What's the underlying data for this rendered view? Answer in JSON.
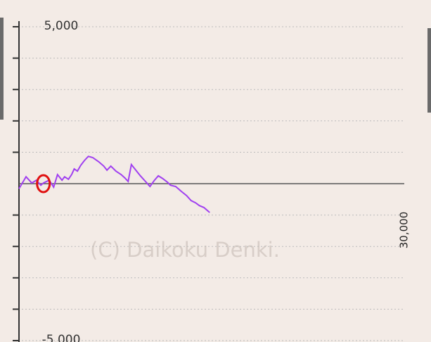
{
  "chart_data": {
    "type": "line",
    "watermark": "(C) Daikoku Denki.",
    "xlim": [
      0,
      30000
    ],
    "xticks": [
      {
        "value": 30000,
        "label": "30,000"
      }
    ],
    "ylim": [
      -5000,
      5000
    ],
    "yticks": [
      {
        "value": 5000,
        "label": "5,000"
      },
      {
        "value": -5000,
        "label": "-5,000"
      }
    ],
    "y_gridlines": [
      4000,
      3000,
      2000,
      1000,
      -1000,
      -2000,
      -3000,
      -4000
    ],
    "zero_line": 0,
    "marker": {
      "x": 1900,
      "y": 0,
      "color": "#e01010"
    },
    "series": [
      {
        "color": "#a040f0",
        "x": [
          0,
          550,
          1000,
          1350,
          1700,
          1900,
          2350,
          2700,
          3000,
          3350,
          3550,
          3850,
          4100,
          4300,
          4550,
          4800,
          5100,
          5400,
          5750,
          6200,
          6600,
          6850,
          7150,
          7550,
          7950,
          8250,
          8500,
          8750,
          9100,
          9450,
          9850,
          10200,
          10550,
          10850,
          11200,
          11550,
          11800,
          12200,
          12650,
          13050,
          13400,
          13750,
          14050,
          14400,
          14850
        ],
        "values": [
          -160,
          220,
          20,
          110,
          -50,
          20,
          110,
          -110,
          290,
          110,
          220,
          140,
          290,
          470,
          400,
          580,
          740,
          870,
          830,
          700,
          560,
          430,
          560,
          400,
          290,
          180,
          70,
          610,
          430,
          250,
          70,
          -90,
          110,
          250,
          160,
          50,
          -50,
          -90,
          -250,
          -380,
          -540,
          -610,
          -700,
          -760,
          -920
        ]
      }
    ]
  }
}
